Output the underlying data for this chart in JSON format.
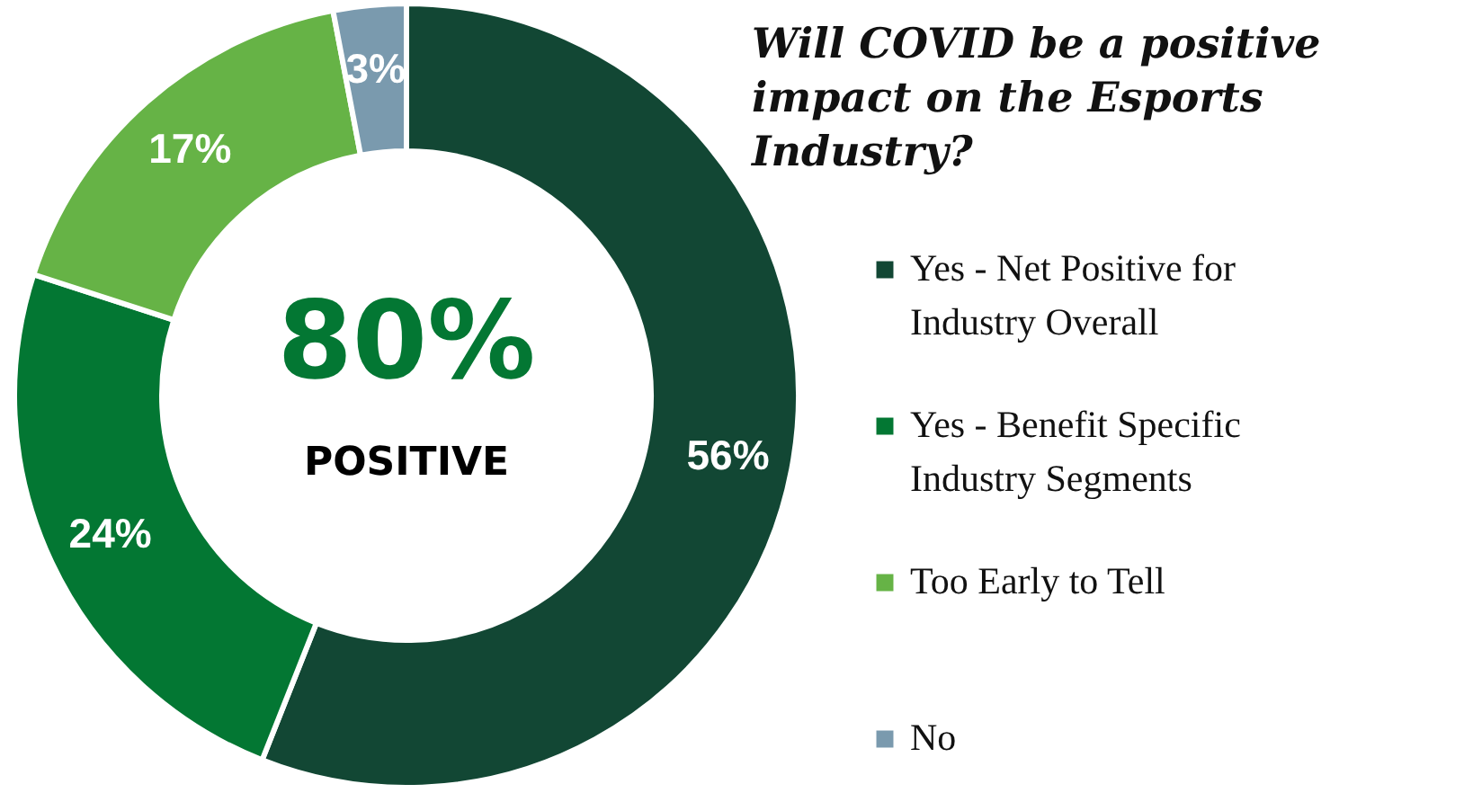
{
  "chart_data": {
    "type": "donut",
    "title": "Will COVID be a positive impact on the Esports Industry?",
    "categories": [
      "Yes - Net Positive for Industry Overall",
      "Yes - Benefit Specific Industry Segments",
      "Too Early to Tell",
      "No"
    ],
    "values": [
      56,
      24,
      17,
      3
    ],
    "colors": [
      "#124734",
      "#037733",
      "#66b346",
      "#7a9aae"
    ],
    "value_labels": [
      "56%",
      "24%",
      "17%",
      "3%"
    ],
    "annotations": [
      "80%",
      "POSITIVE"
    ],
    "legend": "right"
  }
}
